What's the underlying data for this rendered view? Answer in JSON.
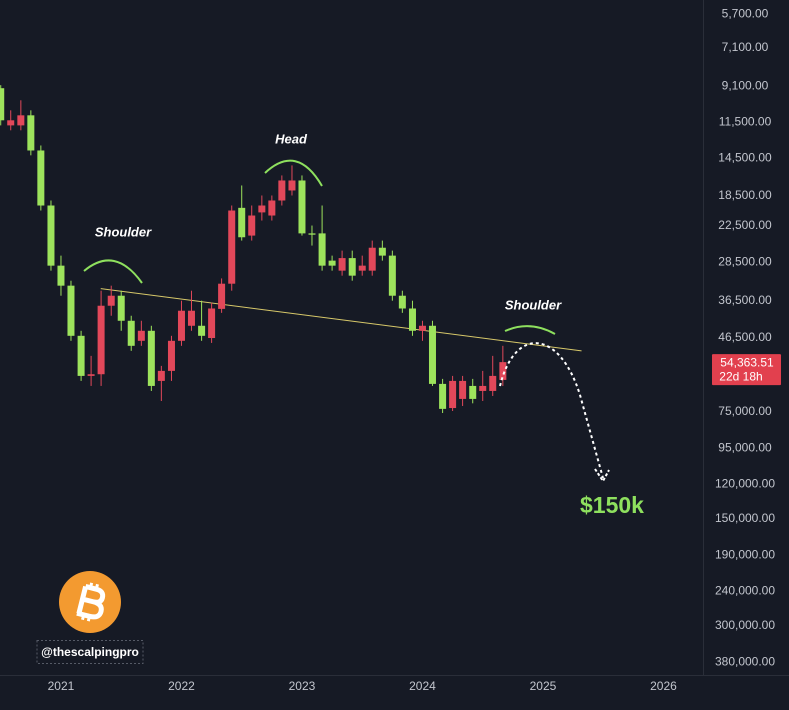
{
  "chart_data": {
    "type": "candlestick",
    "log_scale": true,
    "inverted": true,
    "up_color": "#9de35c",
    "down_color": "#e2485a",
    "x": [
      2020.5,
      2020.583,
      2020.667,
      2020.75,
      2020.833,
      2020.917,
      2021.0,
      2021.083,
      2021.167,
      2021.25,
      2021.333,
      2021.417,
      2021.5,
      2021.583,
      2021.667,
      2021.75,
      2021.833,
      2021.917,
      2022.0,
      2022.083,
      2022.167,
      2022.25,
      2022.333,
      2022.417,
      2022.5,
      2022.583,
      2022.667,
      2022.75,
      2022.833,
      2022.917,
      2023.0,
      2023.083,
      2023.167,
      2023.25,
      2023.333,
      2023.417,
      2023.5,
      2023.583,
      2023.667,
      2023.75,
      2023.833,
      2023.917,
      2024.0,
      2024.083,
      2024.167,
      2024.25,
      2024.333,
      2024.417,
      2024.5,
      2024.583,
      2024.667
    ],
    "open": [
      9210,
      11720,
      11720,
      10980,
      13790,
      19700,
      29090,
      33120,
      45840,
      59440,
      58800,
      37720,
      35350,
      41580,
      47350,
      44370,
      61400,
      57540,
      47350,
      42950,
      42950,
      46500,
      38500,
      32700,
      20000,
      23940,
      20600,
      21020,
      19070,
      17870,
      16750,
      23600,
      23600,
      28160,
      30050,
      27700,
      30050,
      30050,
      25900,
      27260,
      35350,
      38400,
      44370,
      42950,
      62600,
      73200,
      69000,
      63430,
      65530,
      65530,
      61000
    ],
    "high": [
      11720,
      12100,
      12100,
      14230,
      20350,
      30050,
      35350,
      47350,
      61400,
      63430,
      63430,
      40250,
      44370,
      50530,
      48910,
      65530,
      69930,
      61400,
      48910,
      44370,
      47350,
      48000,
      39500,
      34220,
      24730,
      24730,
      21720,
      21720,
      19700,
      18460,
      23940,
      25540,
      30050,
      30050,
      31040,
      32070,
      31040,
      31040,
      28160,
      36510,
      39500,
      45840,
      47350,
      63430,
      75600,
      74620,
      72230,
      71000,
      69930,
      67690,
      63430
    ],
    "low": [
      9030,
      10630,
      9960,
      10630,
      13350,
      19070,
      27260,
      32070,
      44370,
      52200,
      34220,
      33120,
      34220,
      40250,
      41580,
      42950,
      55700,
      45840,
      36510,
      34220,
      36510,
      37000,
      31600,
      19700,
      17300,
      19700,
      18460,
      18460,
      16210,
      15190,
      16210,
      22430,
      19700,
      27260,
      26390,
      26390,
      27260,
      24730,
      24730,
      26390,
      34220,
      36510,
      41580,
      41580,
      60600,
      59440,
      59440,
      60600,
      57540,
      52200,
      48910
    ],
    "close": [
      11340,
      11340,
      10980,
      13790,
      19700,
      29090,
      33120,
      45840,
      59440,
      58800,
      37720,
      35350,
      41580,
      48910,
      44370,
      63430,
      57540,
      47350,
      38960,
      38960,
      45840,
      38400,
      32700,
      20350,
      24200,
      21020,
      19700,
      19070,
      16750,
      16750,
      23600,
      23800,
      29090,
      29090,
      27700,
      31040,
      29090,
      25900,
      27260,
      35350,
      38400,
      44370,
      42950,
      62600,
      73600,
      61400,
      61400,
      69000,
      63430,
      59440,
      54363.51
    ],
    "xlim": [
      2020.494,
      2026.328
    ],
    "xticks": [
      2021,
      2022,
      2023,
      2024,
      2025,
      2026
    ],
    "ylim": [
      5200,
      413000
    ],
    "yticks": [
      {
        "value": 5700,
        "label": "5,700.00"
      },
      {
        "value": 7100,
        "label": "7,100.00"
      },
      {
        "value": 9100,
        "label": "9,100.00"
      },
      {
        "value": 11500,
        "label": "11,500.00"
      },
      {
        "value": 14500,
        "label": "14,500.00"
      },
      {
        "value": 18500,
        "label": "18,500.00"
      },
      {
        "value": 22500,
        "label": "22,500.00"
      },
      {
        "value": 28500,
        "label": "28,500.00"
      },
      {
        "value": 36500,
        "label": "36,500.00"
      },
      {
        "value": 46500,
        "label": "46,500.00"
      },
      {
        "value": 75000,
        "label": "75,000.00"
      },
      {
        "value": 95000,
        "label": "95,000.00"
      },
      {
        "value": 120000,
        "label": "120,000.00"
      },
      {
        "value": 150000,
        "label": "150,000.00"
      },
      {
        "value": 190000,
        "label": "190,000.00"
      },
      {
        "value": 240000,
        "label": "240,000.00"
      },
      {
        "value": 300000,
        "label": "300,000.00"
      },
      {
        "value": 380000,
        "label": "380,000.00"
      }
    ],
    "last_price": {
      "value": 54363.51,
      "label": "54,363.51"
    },
    "countdown": "22d 18h",
    "trendline": {
      "x": [
        2021.33,
        2025.32
      ],
      "y": [
        33760,
        50530
      ],
      "color": "#d8c96a"
    },
    "annotations": [
      "Shoulder",
      "Head",
      "Shoulder",
      "$150k"
    ],
    "watermark": "@thescalpingpro"
  }
}
